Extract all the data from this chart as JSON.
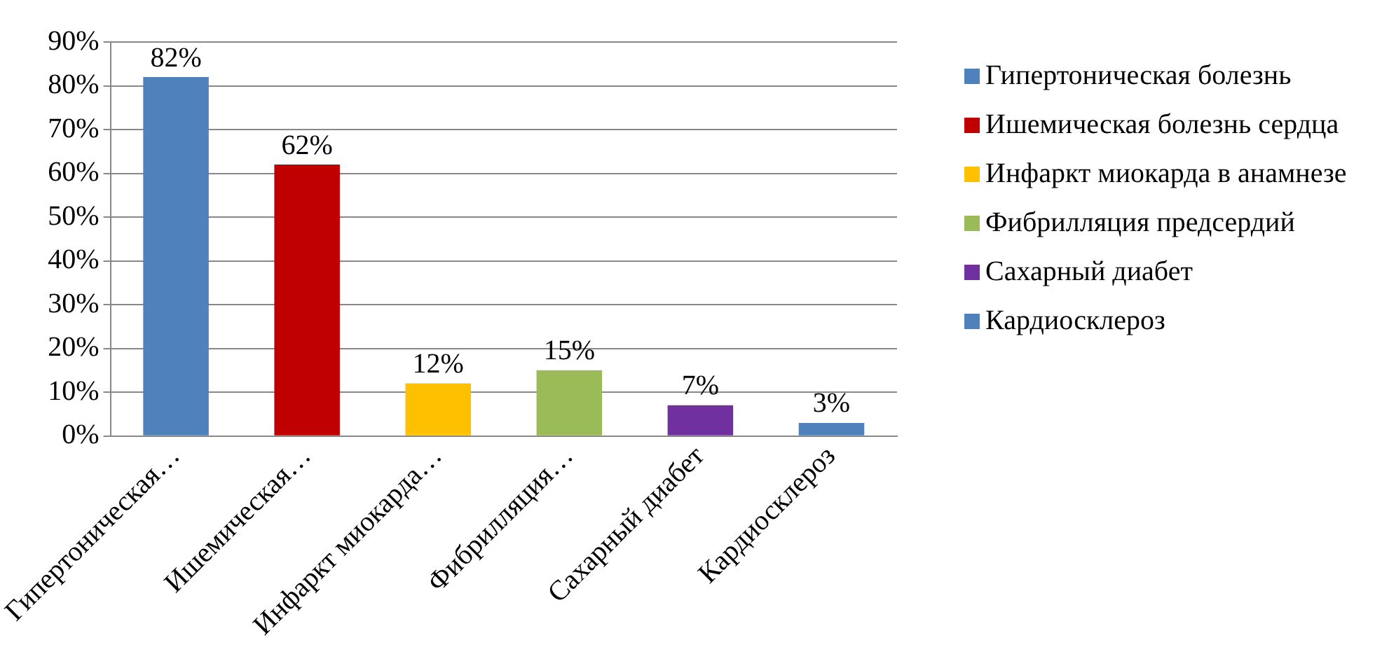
{
  "chart_data": {
    "type": "bar",
    "stacked": true,
    "categories": [
      "Гипертоническая…",
      "Ишемическая…",
      "Инфаркт миокарда…",
      "Фибрилляция…",
      "Сахарный диабет",
      "Кардиосклероз"
    ],
    "series": [
      {
        "name": "Гипертоническая болезнь",
        "color": "#4f81bd",
        "values": [
          82,
          null,
          null,
          null,
          null,
          null
        ],
        "value_labels": [
          "82%",
          null,
          null,
          null,
          null,
          null
        ]
      },
      {
        "name": "Ишемическая болезнь сердца",
        "color": "#c00000",
        "values": [
          null,
          62,
          null,
          null,
          null,
          null
        ],
        "value_labels": [
          null,
          "62%",
          null,
          null,
          null,
          null
        ]
      },
      {
        "name": "Инфаркт миокарда в анамнезе",
        "color": "#ffc000",
        "values": [
          null,
          null,
          12,
          null,
          null,
          null
        ],
        "value_labels": [
          null,
          null,
          "12%",
          null,
          null,
          null
        ]
      },
      {
        "name": "Фибрилляция предсердий",
        "color": "#9bbb59",
        "values": [
          null,
          null,
          null,
          15,
          null,
          null
        ],
        "value_labels": [
          null,
          null,
          null,
          "15%",
          null,
          null
        ]
      },
      {
        "name": "Сахарный диабет",
        "color": "#7030a0",
        "values": [
          null,
          null,
          null,
          null,
          7,
          null
        ],
        "value_labels": [
          null,
          null,
          null,
          null,
          "7%",
          null
        ]
      },
      {
        "name": "Кардиосклероз",
        "color": "#4f81bd",
        "values": [
          null,
          null,
          null,
          null,
          null,
          3
        ],
        "value_labels": [
          null,
          null,
          null,
          null,
          null,
          "3%"
        ]
      }
    ],
    "ylim": [
      0,
      90
    ],
    "yticks": [
      {
        "value": 0,
        "label": "0%"
      },
      {
        "value": 10,
        "label": "10%"
      },
      {
        "value": 20,
        "label": "20%"
      },
      {
        "value": 30,
        "label": "30%"
      },
      {
        "value": 40,
        "label": "40%"
      },
      {
        "value": 50,
        "label": "50%"
      },
      {
        "value": 60,
        "label": "60%"
      },
      {
        "value": 70,
        "label": "70%"
      },
      {
        "value": 80,
        "label": "80%"
      },
      {
        "value": 90,
        "label": "90%"
      }
    ],
    "grid": "y",
    "legend": "right"
  }
}
